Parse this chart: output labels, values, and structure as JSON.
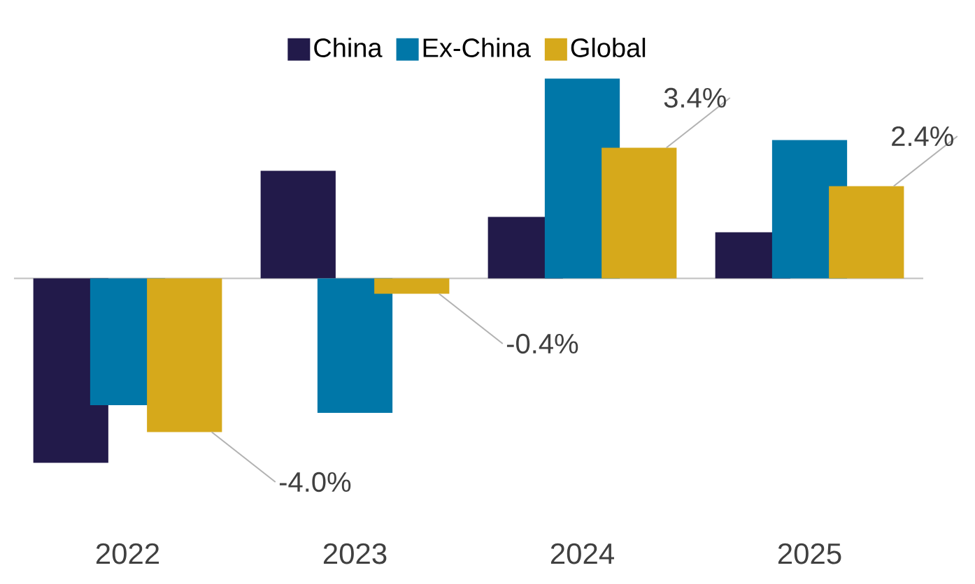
{
  "chart_data": {
    "type": "bar",
    "categories": [
      "2022",
      "2023",
      "2024",
      "2025"
    ],
    "legend": "top",
    "series": [
      {
        "name": "China",
        "color": "#221a4a",
        "values": [
          -4.8,
          2.8,
          1.6,
          1.2
        ]
      },
      {
        "name": "Ex-China",
        "color": "#0077a8",
        "values": [
          -3.3,
          -3.5,
          5.2,
          3.6
        ]
      },
      {
        "name": "Global",
        "color": "#d6a91b",
        "values": [
          -4.0,
          -0.4,
          3.4,
          2.4
        ],
        "value_labels": [
          "-4.0%",
          "-0.4%",
          "3.4%",
          "2.4%"
        ]
      }
    ]
  }
}
